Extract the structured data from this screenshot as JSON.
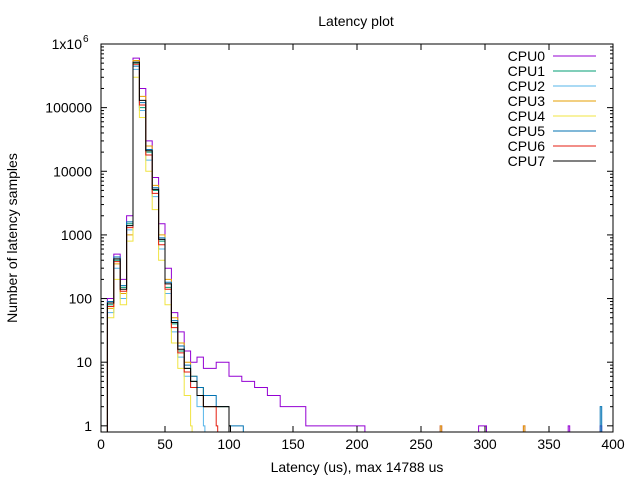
{
  "chart_data": {
    "type": "line",
    "title": "Latency plot",
    "xlabel": "Latency (us), max 14788 us",
    "ylabel": "Number of latency samples",
    "xlim": [
      0,
      400
    ],
    "ylim": [
      0.8,
      1000000
    ],
    "yscale": "log",
    "grid": false,
    "legend_position": "top-right",
    "x_ticks": [
      {
        "value": 0,
        "label": "0"
      },
      {
        "value": 50,
        "label": "50"
      },
      {
        "value": 100,
        "label": "100"
      },
      {
        "value": 150,
        "label": "150"
      },
      {
        "value": 200,
        "label": "200"
      },
      {
        "value": 250,
        "label": "250"
      },
      {
        "value": 300,
        "label": "300"
      },
      {
        "value": 350,
        "label": "350"
      },
      {
        "value": 400,
        "label": "400"
      }
    ],
    "y_ticks": [
      {
        "value": 1,
        "label": "1",
        "sup": ""
      },
      {
        "value": 10,
        "label": "10",
        "sup": ""
      },
      {
        "value": 100,
        "label": "100",
        "sup": ""
      },
      {
        "value": 1000,
        "label": "1000",
        "sup": ""
      },
      {
        "value": 10000,
        "label": "10000",
        "sup": ""
      },
      {
        "value": 100000,
        "label": "100000",
        "sup": ""
      },
      {
        "value": 1000000,
        "label": "1x10",
        "sup": "6"
      }
    ],
    "series": [
      {
        "name": "CPU0",
        "color": "#9400d3",
        "x": [
          5,
          10,
          15,
          20,
          25,
          30,
          35,
          40,
          45,
          50,
          55,
          60,
          65,
          70,
          75,
          80,
          90,
          100,
          110,
          120,
          130,
          140,
          150,
          160,
          170,
          180,
          190,
          200,
          205,
          265,
          295,
          300,
          330,
          365,
          390
        ],
        "y": [
          100,
          500,
          200,
          2000,
          600000,
          200000,
          30000,
          8000,
          1500,
          300,
          60,
          30,
          15,
          10,
          12,
          8,
          10,
          6,
          5,
          4,
          3,
          2,
          2,
          1,
          1,
          1,
          1,
          1,
          1,
          1,
          1,
          1,
          1,
          1,
          1
        ]
      },
      {
        "name": "CPU1",
        "color": "#009e73",
        "x": [
          5,
          10,
          15,
          20,
          25,
          30,
          35,
          40,
          45,
          50,
          55,
          60,
          65,
          70,
          75,
          80,
          90,
          100
        ],
        "y": [
          80,
          400,
          150,
          1500,
          500000,
          100000,
          20000,
          5000,
          800,
          150,
          40,
          15,
          8,
          5,
          4,
          2,
          2,
          1
        ]
      },
      {
        "name": "CPU2",
        "color": "#56b4e9",
        "x": [
          5,
          10,
          15,
          20,
          25,
          30,
          35,
          40,
          45,
          50,
          55,
          60,
          65,
          70,
          75,
          80
        ],
        "y": [
          60,
          300,
          100,
          1200,
          400000,
          90000,
          15000,
          4000,
          600,
          120,
          30,
          12,
          6,
          4,
          2,
          1
        ]
      },
      {
        "name": "CPU3",
        "color": "#e69f00",
        "x": [
          5,
          10,
          15,
          20,
          25,
          30,
          35,
          40,
          45,
          50,
          55,
          60,
          65,
          70,
          75,
          80,
          90,
          100,
          265,
          330
        ],
        "y": [
          70,
          350,
          120,
          1000,
          550000,
          150000,
          25000,
          6000,
          1000,
          200,
          50,
          20,
          10,
          6,
          4,
          2,
          2,
          1,
          1,
          1
        ]
      },
      {
        "name": "CPU4",
        "color": "#f0e442",
        "x": [
          5,
          10,
          15,
          20,
          25,
          30,
          35,
          40,
          45,
          50,
          55,
          60,
          65,
          70
        ],
        "y": [
          50,
          200,
          80,
          800,
          300000,
          70000,
          10000,
          2500,
          400,
          80,
          20,
          8,
          3,
          1
        ]
      },
      {
        "name": "CPU5",
        "color": "#0072b2",
        "x": [
          5,
          10,
          15,
          20,
          25,
          30,
          35,
          40,
          45,
          50,
          55,
          60,
          65,
          70,
          75,
          80,
          90,
          100,
          110,
          390
        ],
        "y": [
          90,
          450,
          160,
          1600,
          450000,
          120000,
          22000,
          5500,
          900,
          180,
          45,
          18,
          9,
          6,
          4,
          3,
          2,
          1,
          1,
          2
        ]
      },
      {
        "name": "CPU6",
        "color": "#e51e10",
        "x": [
          5,
          10,
          15,
          20,
          25,
          30,
          35,
          40,
          45,
          50,
          55,
          60,
          65,
          70,
          75,
          80,
          90
        ],
        "y": [
          75,
          380,
          130,
          1300,
          480000,
          110000,
          18000,
          4500,
          700,
          140,
          35,
          14,
          7,
          4,
          3,
          2,
          1
        ]
      },
      {
        "name": "CPU7",
        "color": "#000000",
        "x": [
          5,
          10,
          15,
          20,
          25,
          30,
          35,
          40,
          45,
          50,
          55,
          60,
          65,
          70,
          75,
          80,
          90,
          100
        ],
        "y": [
          85,
          420,
          140,
          1400,
          520000,
          130000,
          21000,
          5200,
          850,
          170,
          42,
          16,
          8,
          5,
          3,
          2,
          2,
          1
        ]
      }
    ]
  }
}
